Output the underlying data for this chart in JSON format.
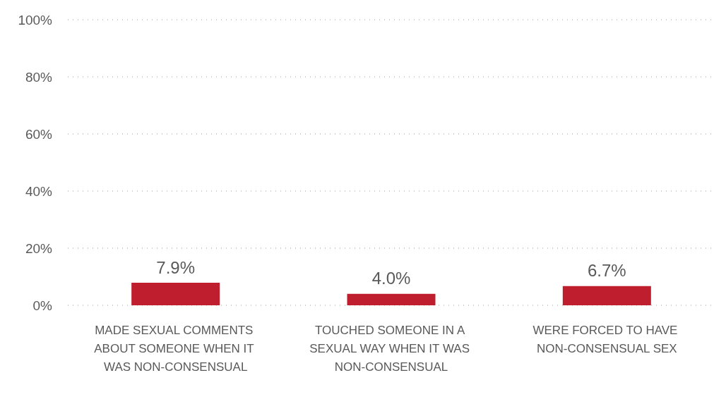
{
  "chart_data": {
    "type": "bar",
    "categories": [
      "MADE SEXUAL COMMENTS ABOUT SOMEONE WHEN IT WAS NON-CONSENSUAL",
      "TOUCHED SOMEONE IN A SEXUAL WAY WHEN IT WAS NON-CONSENSUAL",
      "WERE FORCED TO HAVE NON-CONSENSUAL SEX"
    ],
    "values": [
      7.9,
      4.0,
      6.7
    ],
    "value_labels": [
      "7.9%",
      "4.0%",
      "6.7%"
    ],
    "color": "#be1e2d",
    "ylim": [
      0,
      100
    ],
    "yticks": [
      {
        "value": 0,
        "label": "0%"
      },
      {
        "value": 20,
        "label": "20%"
      },
      {
        "value": 40,
        "label": "40%"
      },
      {
        "value": 60,
        "label": "60%"
      },
      {
        "value": 80,
        "label": "80%"
      },
      {
        "value": 100,
        "label": "100%"
      }
    ],
    "grid": "y"
  }
}
